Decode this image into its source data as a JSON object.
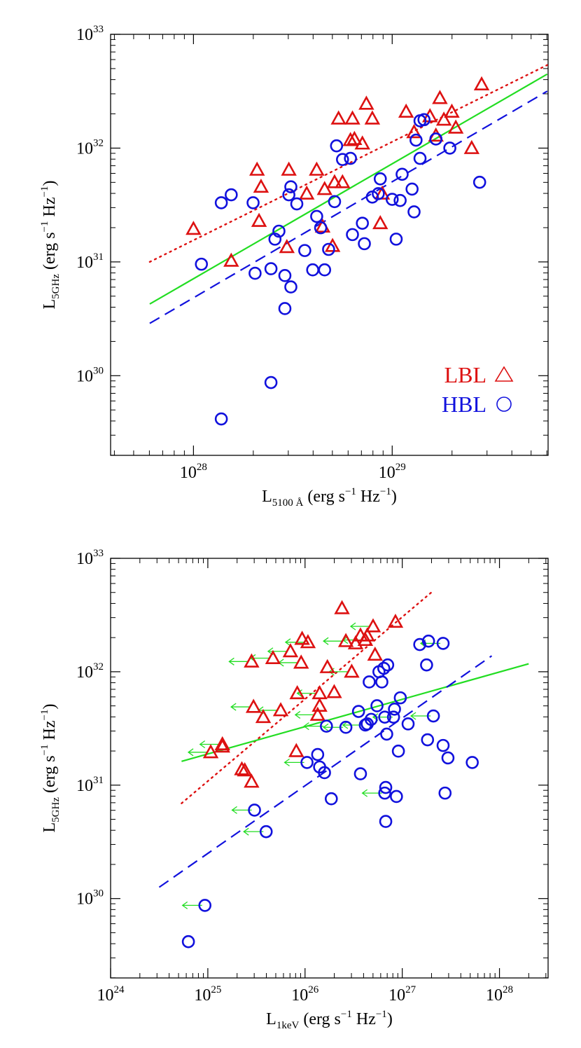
{
  "charts": [
    {
      "id": "top",
      "type": "scatter",
      "xlabel": {
        "main": "L",
        "sub": "5100 Å",
        "unit_pre": "(erg s",
        "unit_sup": "−1",
        "unit_mid": " Hz",
        "unit_sup2": "−1",
        "unit_post": ")"
      },
      "ylabel": {
        "main": "L",
        "sub": "5GHz",
        "unit_pre": "(erg s",
        "unit_sup": "−1",
        "unit_mid": " Hz",
        "unit_sup2": "−1",
        "unit_post": ")"
      },
      "xlim_log": [
        27.583,
        29.7845
      ],
      "ylim_log": [
        29.3,
        33.0
      ],
      "x_ticks": [
        {
          "base": "10",
          "exp": "28",
          "v": 28
        },
        {
          "base": "10",
          "exp": "29",
          "v": 29
        }
      ],
      "y_ticks": [
        {
          "base": "10",
          "exp": "30",
          "v": 30
        },
        {
          "base": "10",
          "exp": "31",
          "v": 31
        },
        {
          "base": "10",
          "exp": "32",
          "v": 32
        },
        {
          "base": "10",
          "exp": "33",
          "v": 33
        }
      ],
      "legend": {
        "position": "bottom-right",
        "entries": [
          {
            "label": "LBL",
            "marker": "triangle",
            "color": "#dd1111"
          },
          {
            "label": "HBL",
            "marker": "circle",
            "color": "#1111dd"
          }
        ]
      },
      "series": [
        {
          "name": "LBL",
          "marker": "triangle",
          "color": "#dd1111",
          "points_log": [
            [
              28.0,
              31.29
            ],
            [
              28.19,
              31.01
            ],
            [
              28.32,
              31.81
            ],
            [
              28.34,
              31.66
            ],
            [
              28.33,
              31.36
            ],
            [
              28.48,
              31.81
            ],
            [
              28.47,
              31.13
            ],
            [
              28.57,
              31.6
            ],
            [
              28.62,
              31.81
            ],
            [
              28.65,
              31.31
            ],
            [
              28.66,
              31.64
            ],
            [
              28.7,
              31.14
            ],
            [
              28.71,
              31.7
            ],
            [
              28.73,
              32.26
            ],
            [
              28.75,
              31.7
            ],
            [
              28.79,
              32.07
            ],
            [
              28.8,
              32.26
            ],
            [
              28.81,
              32.08
            ],
            [
              28.85,
              32.04
            ],
            [
              28.87,
              32.39
            ],
            [
              28.9,
              32.26
            ],
            [
              28.94,
              31.34
            ],
            [
              28.95,
              31.6
            ],
            [
              29.07,
              32.32
            ],
            [
              29.11,
              32.14
            ],
            [
              29.19,
              32.28
            ],
            [
              29.22,
              32.11
            ],
            [
              29.24,
              32.44
            ],
            [
              29.26,
              32.25
            ],
            [
              29.3,
              32.32
            ],
            [
              29.32,
              32.18
            ],
            [
              29.4,
              32.0
            ],
            [
              29.45,
              32.56
            ]
          ]
        },
        {
          "name": "HBL",
          "marker": "circle",
          "color": "#1111dd",
          "points_log": [
            [
              28.04,
              30.98
            ],
            [
              28.14,
              31.52
            ],
            [
              28.14,
              29.62
            ],
            [
              28.19,
              31.59
            ],
            [
              28.3,
              31.52
            ],
            [
              28.31,
              30.9
            ],
            [
              28.39,
              30.94
            ],
            [
              28.39,
              29.94
            ],
            [
              28.41,
              31.2
            ],
            [
              28.43,
              31.27
            ],
            [
              28.46,
              30.88
            ],
            [
              28.46,
              30.59
            ],
            [
              28.48,
              31.59
            ],
            [
              28.49,
              31.66
            ],
            [
              28.49,
              30.78
            ],
            [
              28.52,
              31.51
            ],
            [
              28.56,
              31.1
            ],
            [
              28.6,
              30.93
            ],
            [
              28.62,
              31.4
            ],
            [
              28.64,
              31.3
            ],
            [
              28.66,
              30.93
            ],
            [
              28.68,
              31.11
            ],
            [
              28.71,
              31.53
            ],
            [
              28.72,
              32.02
            ],
            [
              28.75,
              31.9
            ],
            [
              28.79,
              31.91
            ],
            [
              28.8,
              31.24
            ],
            [
              28.85,
              31.34
            ],
            [
              28.86,
              31.16
            ],
            [
              28.9,
              31.57
            ],
            [
              28.93,
              31.6
            ],
            [
              28.94,
              31.73
            ],
            [
              29.0,
              31.55
            ],
            [
              29.02,
              31.2
            ],
            [
              29.04,
              31.54
            ],
            [
              29.05,
              31.77
            ],
            [
              29.1,
              31.64
            ],
            [
              29.11,
              31.44
            ],
            [
              29.12,
              32.07
            ],
            [
              29.14,
              31.91
            ],
            [
              29.14,
              32.24
            ],
            [
              29.16,
              32.25
            ],
            [
              29.22,
              32.08
            ],
            [
              29.29,
              32.0
            ],
            [
              29.44,
              31.7
            ]
          ]
        }
      ],
      "fits": [
        {
          "name": "LBL fit",
          "style": "dotted",
          "color": "#dd1111",
          "x_log": [
            27.78,
            29.78
          ],
          "y_log": [
            31.0,
            32.73
          ]
        },
        {
          "name": "all fit",
          "style": "solid",
          "color": "#22dd22",
          "x_log": [
            27.78,
            29.78
          ],
          "y_log": [
            30.63,
            32.65
          ]
        },
        {
          "name": "HBL fit",
          "style": "dashed",
          "color": "#1111dd",
          "x_log": [
            27.78,
            29.78
          ],
          "y_log": [
            30.46,
            32.5
          ]
        }
      ]
    },
    {
      "id": "bottom",
      "type": "scatter",
      "xlabel": {
        "main": "L",
        "sub": "1keV",
        "unit_pre": "(erg s",
        "unit_sup": "−1",
        "unit_mid": " Hz",
        "unit_sup2": "−1",
        "unit_post": ")"
      },
      "ylabel": {
        "main": "L",
        "sub": "5GHz",
        "unit_pre": "(erg s",
        "unit_sup": "−1",
        "unit_mid": " Hz",
        "unit_sup2": "−1",
        "unit_post": ")"
      },
      "xlim_log": [
        24.0,
        28.5
      ],
      "ylim_log": [
        29.3,
        33.0
      ],
      "x_ticks": [
        {
          "base": "10",
          "exp": "24",
          "v": 24
        },
        {
          "base": "10",
          "exp": "25",
          "v": 25
        },
        {
          "base": "10",
          "exp": "26",
          "v": 26
        },
        {
          "base": "10",
          "exp": "27",
          "v": 27
        },
        {
          "base": "10",
          "exp": "28",
          "v": 28
        }
      ],
      "y_ticks": [
        {
          "base": "10",
          "exp": "30",
          "v": 30
        },
        {
          "base": "10",
          "exp": "31",
          "v": 31
        },
        {
          "base": "10",
          "exp": "32",
          "v": 32
        },
        {
          "base": "10",
          "exp": "33",
          "v": 33
        }
      ],
      "series": [
        {
          "name": "LBL",
          "marker": "triangle",
          "color": "#dd1111",
          "points_log": [
            [
              25.03,
              31.29
            ],
            [
              25.15,
              31.36
            ],
            [
              25.15,
              31.34
            ],
            [
              25.35,
              31.14
            ],
            [
              25.38,
              31.13
            ],
            [
              25.45,
              31.03
            ],
            [
              25.47,
              31.69
            ],
            [
              25.45,
              32.09
            ],
            [
              25.57,
              31.6
            ],
            [
              25.67,
              32.12
            ],
            [
              25.75,
              31.66
            ],
            [
              25.85,
              32.18
            ],
            [
              25.91,
              31.3
            ],
            [
              25.92,
              31.81
            ],
            [
              25.96,
              32.08
            ],
            [
              25.97,
              32.29
            ],
            [
              26.03,
              32.26
            ],
            [
              26.13,
              31.62
            ],
            [
              26.15,
              31.7
            ],
            [
              26.15,
              31.81
            ],
            [
              26.23,
              32.04
            ],
            [
              26.3,
              31.82
            ],
            [
              26.38,
              32.56
            ],
            [
              26.42,
              32.27
            ],
            [
              26.48,
              32.0
            ],
            [
              26.52,
              32.25
            ],
            [
              26.57,
              32.32
            ],
            [
              26.62,
              32.28
            ],
            [
              26.64,
              32.32
            ],
            [
              26.7,
              32.4
            ],
            [
              26.72,
              32.15
            ],
            [
              26.93,
              32.44
            ]
          ]
        },
        {
          "name": "HBL",
          "marker": "circle",
          "color": "#1111dd",
          "points_log": [
            [
              24.8,
              29.62
            ],
            [
              24.97,
              29.94
            ],
            [
              25.48,
              30.78
            ],
            [
              25.6,
              30.59
            ],
            [
              26.02,
              31.2
            ],
            [
              26.13,
              31.27
            ],
            [
              26.15,
              31.16
            ],
            [
              26.2,
              31.11
            ],
            [
              26.22,
              31.52
            ],
            [
              26.27,
              30.88
            ],
            [
              26.42,
              31.51
            ],
            [
              26.55,
              31.65
            ],
            [
              26.57,
              31.1
            ],
            [
              26.62,
              31.53
            ],
            [
              26.64,
              31.54
            ],
            [
              26.66,
              31.91
            ],
            [
              26.68,
              31.58
            ],
            [
              26.74,
              31.7
            ],
            [
              26.76,
              32.0
            ],
            [
              26.79,
              31.91
            ],
            [
              26.81,
              32.03
            ],
            [
              26.82,
              31.6
            ],
            [
              26.82,
              30.93
            ],
            [
              26.83,
              30.68
            ],
            [
              26.83,
              30.98
            ],
            [
              26.84,
              31.45
            ],
            [
              26.85,
              32.06
            ],
            [
              26.91,
              31.6
            ],
            [
              26.92,
              31.67
            ],
            [
              26.94,
              30.9
            ],
            [
              26.96,
              31.3
            ],
            [
              26.98,
              31.77
            ],
            [
              27.06,
              31.54
            ],
            [
              27.18,
              32.24
            ],
            [
              27.25,
              32.06
            ],
            [
              27.26,
              31.4
            ],
            [
              27.27,
              32.27
            ],
            [
              27.32,
              31.61
            ],
            [
              27.42,
              32.25
            ],
            [
              27.42,
              31.35
            ],
            [
              27.47,
              31.24
            ],
            [
              27.44,
              30.93
            ],
            [
              27.72,
              31.2
            ]
          ]
        }
      ],
      "upper_limits": [
        {
          "color": "#22dd22",
          "points_log": [
            [
              24.97,
              29.94
            ],
            [
              25.48,
              30.78
            ],
            [
              25.6,
              30.59
            ],
            [
              25.03,
              31.29
            ],
            [
              25.15,
              31.36
            ],
            [
              25.45,
              32.09
            ],
            [
              25.47,
              31.69
            ],
            [
              25.67,
              32.12
            ],
            [
              25.85,
              32.18
            ],
            [
              25.75,
              31.66
            ],
            [
              25.96,
              32.08
            ],
            [
              26.03,
              32.26
            ],
            [
              26.15,
              31.81
            ],
            [
              26.13,
              31.62
            ],
            [
              26.42,
              32.27
            ],
            [
              26.48,
              32.0
            ],
            [
              26.62,
              32.28
            ],
            [
              26.7,
              32.4
            ],
            [
              26.62,
              31.53
            ],
            [
              26.42,
              31.51
            ],
            [
              26.93,
              31.6
            ],
            [
              27.32,
              31.61
            ],
            [
              27.42,
              32.25
            ],
            [
              26.82,
              30.93
            ],
            [
              26.22,
              31.52
            ],
            [
              26.02,
              31.2
            ]
          ]
        }
      ],
      "fits": [
        {
          "name": "LBL fit",
          "style": "dotted",
          "color": "#dd1111",
          "x_log": [
            24.73,
            27.3
          ],
          "y_log": [
            30.84,
            32.7
          ]
        },
        {
          "name": "all fit",
          "style": "solid",
          "color": "#22dd22",
          "x_log": [
            24.73,
            28.3
          ],
          "y_log": [
            31.21,
            32.07
          ]
        },
        {
          "name": "HBL fit",
          "style": "dashed",
          "color": "#1111dd",
          "x_log": [
            24.5,
            27.92
          ],
          "y_log": [
            30.1,
            32.14
          ]
        }
      ]
    }
  ]
}
